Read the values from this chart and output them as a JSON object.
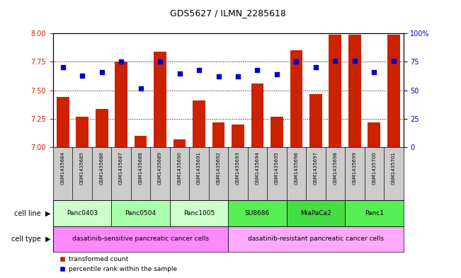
{
  "title": "GDS5627 / ILMN_2285618",
  "samples": [
    "GSM1435684",
    "GSM1435685",
    "GSM1435686",
    "GSM1435687",
    "GSM1435688",
    "GSM1435689",
    "GSM1435690",
    "GSM1435691",
    "GSM1435692",
    "GSM1435693",
    "GSM1435694",
    "GSM1435695",
    "GSM1435696",
    "GSM1435697",
    "GSM1435698",
    "GSM1435699",
    "GSM1435700",
    "GSM1435701"
  ],
  "bar_values": [
    7.44,
    7.27,
    7.34,
    7.75,
    7.1,
    7.84,
    7.07,
    7.41,
    7.22,
    7.2,
    7.56,
    7.27,
    7.85,
    7.47,
    7.99,
    7.99,
    7.22,
    7.99
  ],
  "dot_values": [
    70,
    63,
    66,
    75,
    52,
    75,
    65,
    68,
    62,
    62,
    68,
    64,
    75,
    70,
    76,
    76,
    66,
    76
  ],
  "ylim_left": [
    7.0,
    8.0
  ],
  "ylim_right": [
    0,
    100
  ],
  "yticks_left": [
    7.0,
    7.25,
    7.5,
    7.75,
    8.0
  ],
  "yticks_right": [
    0,
    25,
    50,
    75,
    100
  ],
  "bar_color": "#cc2200",
  "dot_color": "#0000cc",
  "cell_lines": [
    {
      "label": "Panc0403",
      "start": 0,
      "end": 3,
      "color": "#ccffcc"
    },
    {
      "label": "Panc0504",
      "start": 3,
      "end": 6,
      "color": "#aaffaa"
    },
    {
      "label": "Panc1005",
      "start": 6,
      "end": 9,
      "color": "#ccffcc"
    },
    {
      "label": "SU8686",
      "start": 9,
      "end": 12,
      "color": "#55ee55"
    },
    {
      "label": "MiaPaCa2",
      "start": 12,
      "end": 15,
      "color": "#44dd44"
    },
    {
      "label": "Panc1",
      "start": 15,
      "end": 18,
      "color": "#55ee55"
    }
  ],
  "cell_types": [
    {
      "label": "dasatinib-sensitive pancreatic cancer cells",
      "start": 0,
      "end": 9,
      "color": "#ff88ff"
    },
    {
      "label": "dasatinib-resistant pancreatic cancer cells",
      "start": 9,
      "end": 18,
      "color": "#ffaaff"
    }
  ],
  "legend_bar_label": "transformed count",
  "legend_dot_label": "percentile rank within the sample",
  "cell_line_label": "cell line",
  "cell_type_label": "cell type",
  "background_color": "#ffffff",
  "sample_bg_color": "#cccccc",
  "bar_width": 0.65,
  "tick_color_left": "#cc2200",
  "tick_color_right": "#0000cc"
}
